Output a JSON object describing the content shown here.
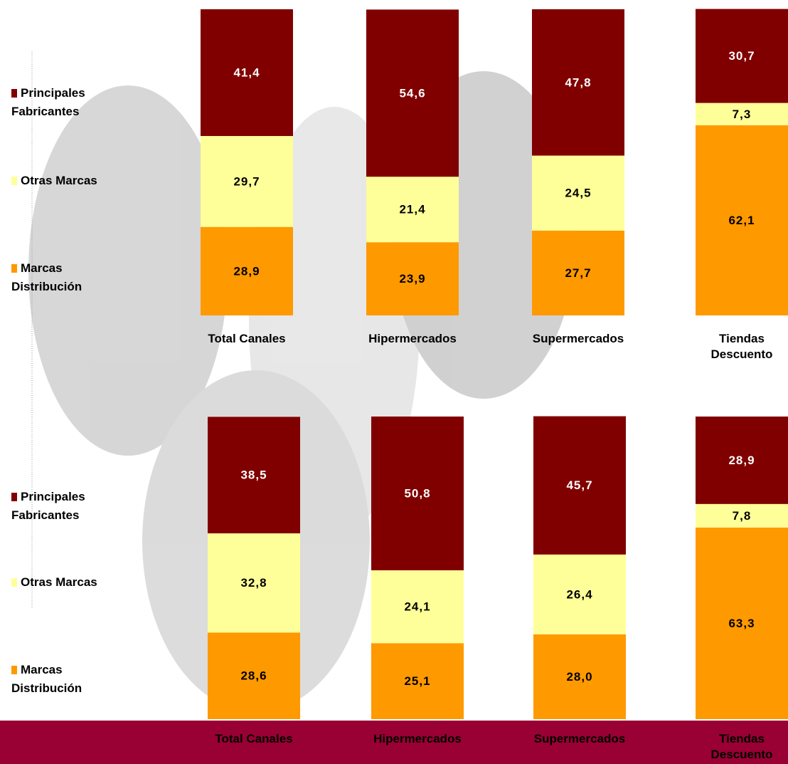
{
  "chart_data": [
    {
      "type": "stacked_bar",
      "legend": "left",
      "ylim": [
        0,
        100
      ],
      "categories": [
        "Total Canales",
        "Hipermercados",
        "Supermercados",
        "Tiendas Descuento"
      ],
      "series": [
        {
          "name": "Principales Fabricantes",
          "color": "#800000",
          "values": [
            41.4,
            54.6,
            47.8,
            30.7
          ],
          "value_labels": [
            "41,4",
            "54,6",
            "47,8",
            "30,7"
          ]
        },
        {
          "name": "Otras Marcas",
          "color": "#ffff99",
          "values": [
            29.7,
            21.4,
            24.5,
            7.3
          ],
          "value_labels": [
            "29,7",
            "21,4",
            "24,5",
            "7,3"
          ]
        },
        {
          "name": "Marcas Distribución",
          "color": "#ff9900",
          "values": [
            28.9,
            23.9,
            27.7,
            62.1
          ],
          "value_labels": [
            "28,9",
            "23,9",
            "27,7",
            "62,1"
          ]
        }
      ]
    },
    {
      "type": "stacked_bar",
      "legend": "left",
      "ylim": [
        0,
        100
      ],
      "categories": [
        "Total Canales",
        "Hipermercados",
        "Supermercados",
        "Tiendas Descuento"
      ],
      "series": [
        {
          "name": "Principales Fabricantes",
          "color": "#800000",
          "values": [
            38.5,
            50.8,
            45.7,
            28.9
          ],
          "value_labels": [
            "38,5",
            "50,8",
            "45,7",
            "28,9"
          ]
        },
        {
          "name": "Otras Marcas",
          "color": "#ffff99",
          "values": [
            32.8,
            24.1,
            26.4,
            7.8
          ],
          "value_labels": [
            "32,8",
            "24,1",
            "26,4",
            "7,8"
          ]
        },
        {
          "name": "Marcas Distribución",
          "color": "#ff9900",
          "values": [
            28.6,
            25.1,
            28.0,
            63.3
          ],
          "value_labels": [
            "28,6",
            "25,1",
            "28,0",
            "63,3"
          ]
        }
      ]
    }
  ]
}
